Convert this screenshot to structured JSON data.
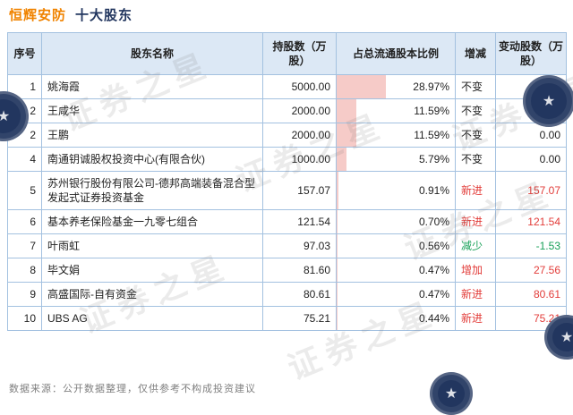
{
  "title": {
    "stock": "恒辉安防",
    "suffix": "十大股东"
  },
  "footer": {
    "source_note": "数据来源：公开数据整理，仅供参考不构成投资建议"
  },
  "watermark": {
    "text": "证券之星",
    "star": "★"
  },
  "colors": {
    "accent_orange": "#f08300",
    "navy": "#22365f",
    "bar_pink": "#f6cbc8",
    "up_red": "#e23c39",
    "down_green": "#18a058",
    "header_bg": "#dce8f5",
    "border_blue": "#a3c1e0"
  },
  "chart_data": {
    "type": "table",
    "title": "恒辉安防 十大股东",
    "columns": [
      "序号",
      "股东名称",
      "持股数（万股）",
      "占总流通股本比例",
      "增减",
      "变动股数（万股）"
    ],
    "bar": {
      "column": "占总流通股本比例",
      "scale": 1.45
    },
    "rows": [
      {
        "rank": "1",
        "name": "姚海霞",
        "shares": "5000.00",
        "pct": 28.97,
        "change": "不变",
        "delta": "0.00"
      },
      {
        "rank": "2",
        "name": "王咸华",
        "shares": "2000.00",
        "pct": 11.59,
        "change": "不变",
        "delta": "0.00"
      },
      {
        "rank": "2",
        "name": "王鹏",
        "shares": "2000.00",
        "pct": 11.59,
        "change": "不变",
        "delta": "0.00"
      },
      {
        "rank": "4",
        "name": "南通钥诚股权投资中心(有限合伙)",
        "shares": "1000.00",
        "pct": 5.79,
        "change": "不变",
        "delta": "0.00"
      },
      {
        "rank": "5",
        "name": "苏州银行股份有限公司-德邦高端装备混合型发起式证券投资基金",
        "shares": "157.07",
        "pct": 0.91,
        "change": "新进",
        "delta": "157.07"
      },
      {
        "rank": "6",
        "name": "基本养老保险基金一九零七组合",
        "shares": "121.54",
        "pct": 0.7,
        "change": "新进",
        "delta": "121.54"
      },
      {
        "rank": "7",
        "name": "叶雨虹",
        "shares": "97.03",
        "pct": 0.56,
        "change": "减少",
        "delta": "-1.53"
      },
      {
        "rank": "8",
        "name": "毕文娟",
        "shares": "81.60",
        "pct": 0.47,
        "change": "增加",
        "delta": "27.56"
      },
      {
        "rank": "9",
        "name": "高盛国际-自有资金",
        "shares": "80.61",
        "pct": 0.47,
        "change": "新进",
        "delta": "80.61"
      },
      {
        "rank": "10",
        "name": "UBS AG",
        "shares": "75.21",
        "pct": 0.44,
        "change": "新进",
        "delta": "75.21"
      }
    ]
  }
}
